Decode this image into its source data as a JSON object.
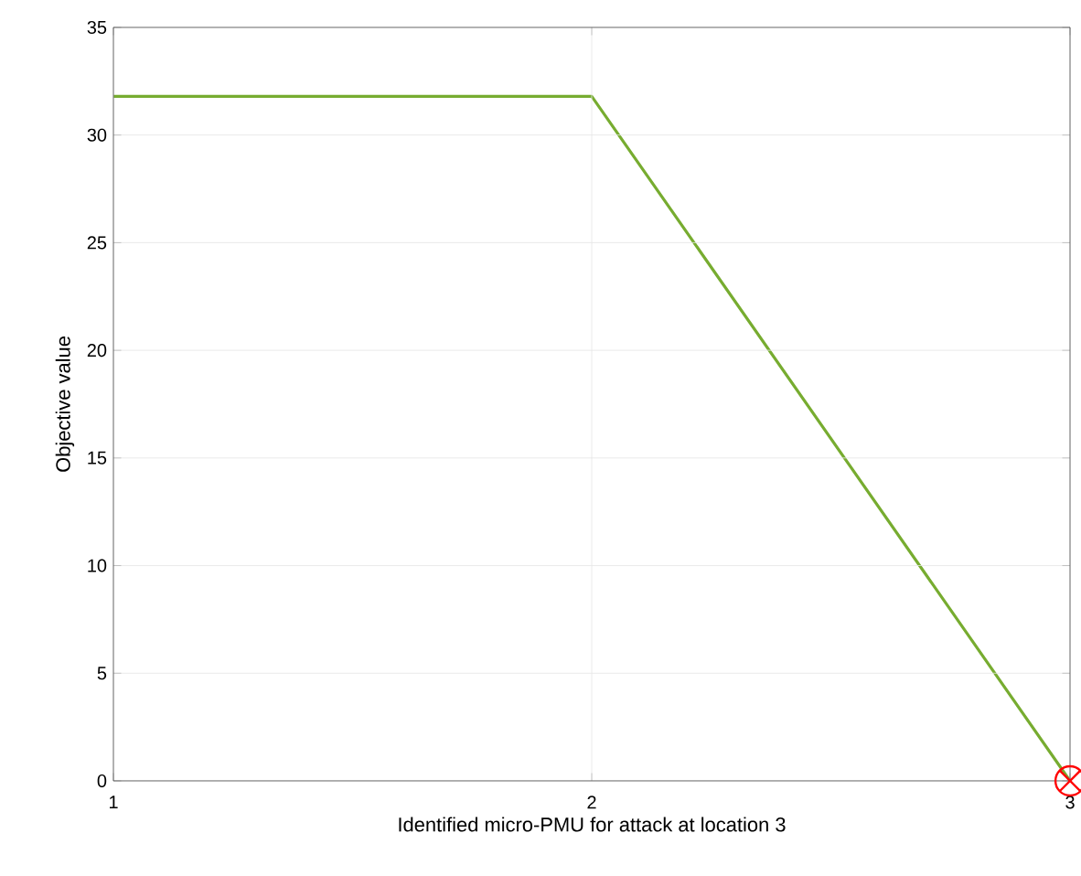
{
  "chart_data": {
    "type": "line",
    "xlabel": "Identified micro-PMU for attack at location 3",
    "ylabel": "Objective value",
    "x": [
      1,
      2,
      3
    ],
    "series": [
      {
        "color": "#77ac30",
        "values": [
          31.8,
          31.8,
          0
        ],
        "marker": "none"
      },
      {
        "type": "scatter",
        "color": "#ff0000",
        "x": [
          3
        ],
        "values": [
          0
        ],
        "marker": "cross"
      }
    ],
    "xlim": [
      1,
      3
    ],
    "xticks": [
      1,
      2,
      3
    ],
    "ylim": [
      0,
      35
    ],
    "yticks": [
      0,
      5,
      10,
      15,
      20,
      25,
      30,
      35
    ],
    "grid": true
  }
}
